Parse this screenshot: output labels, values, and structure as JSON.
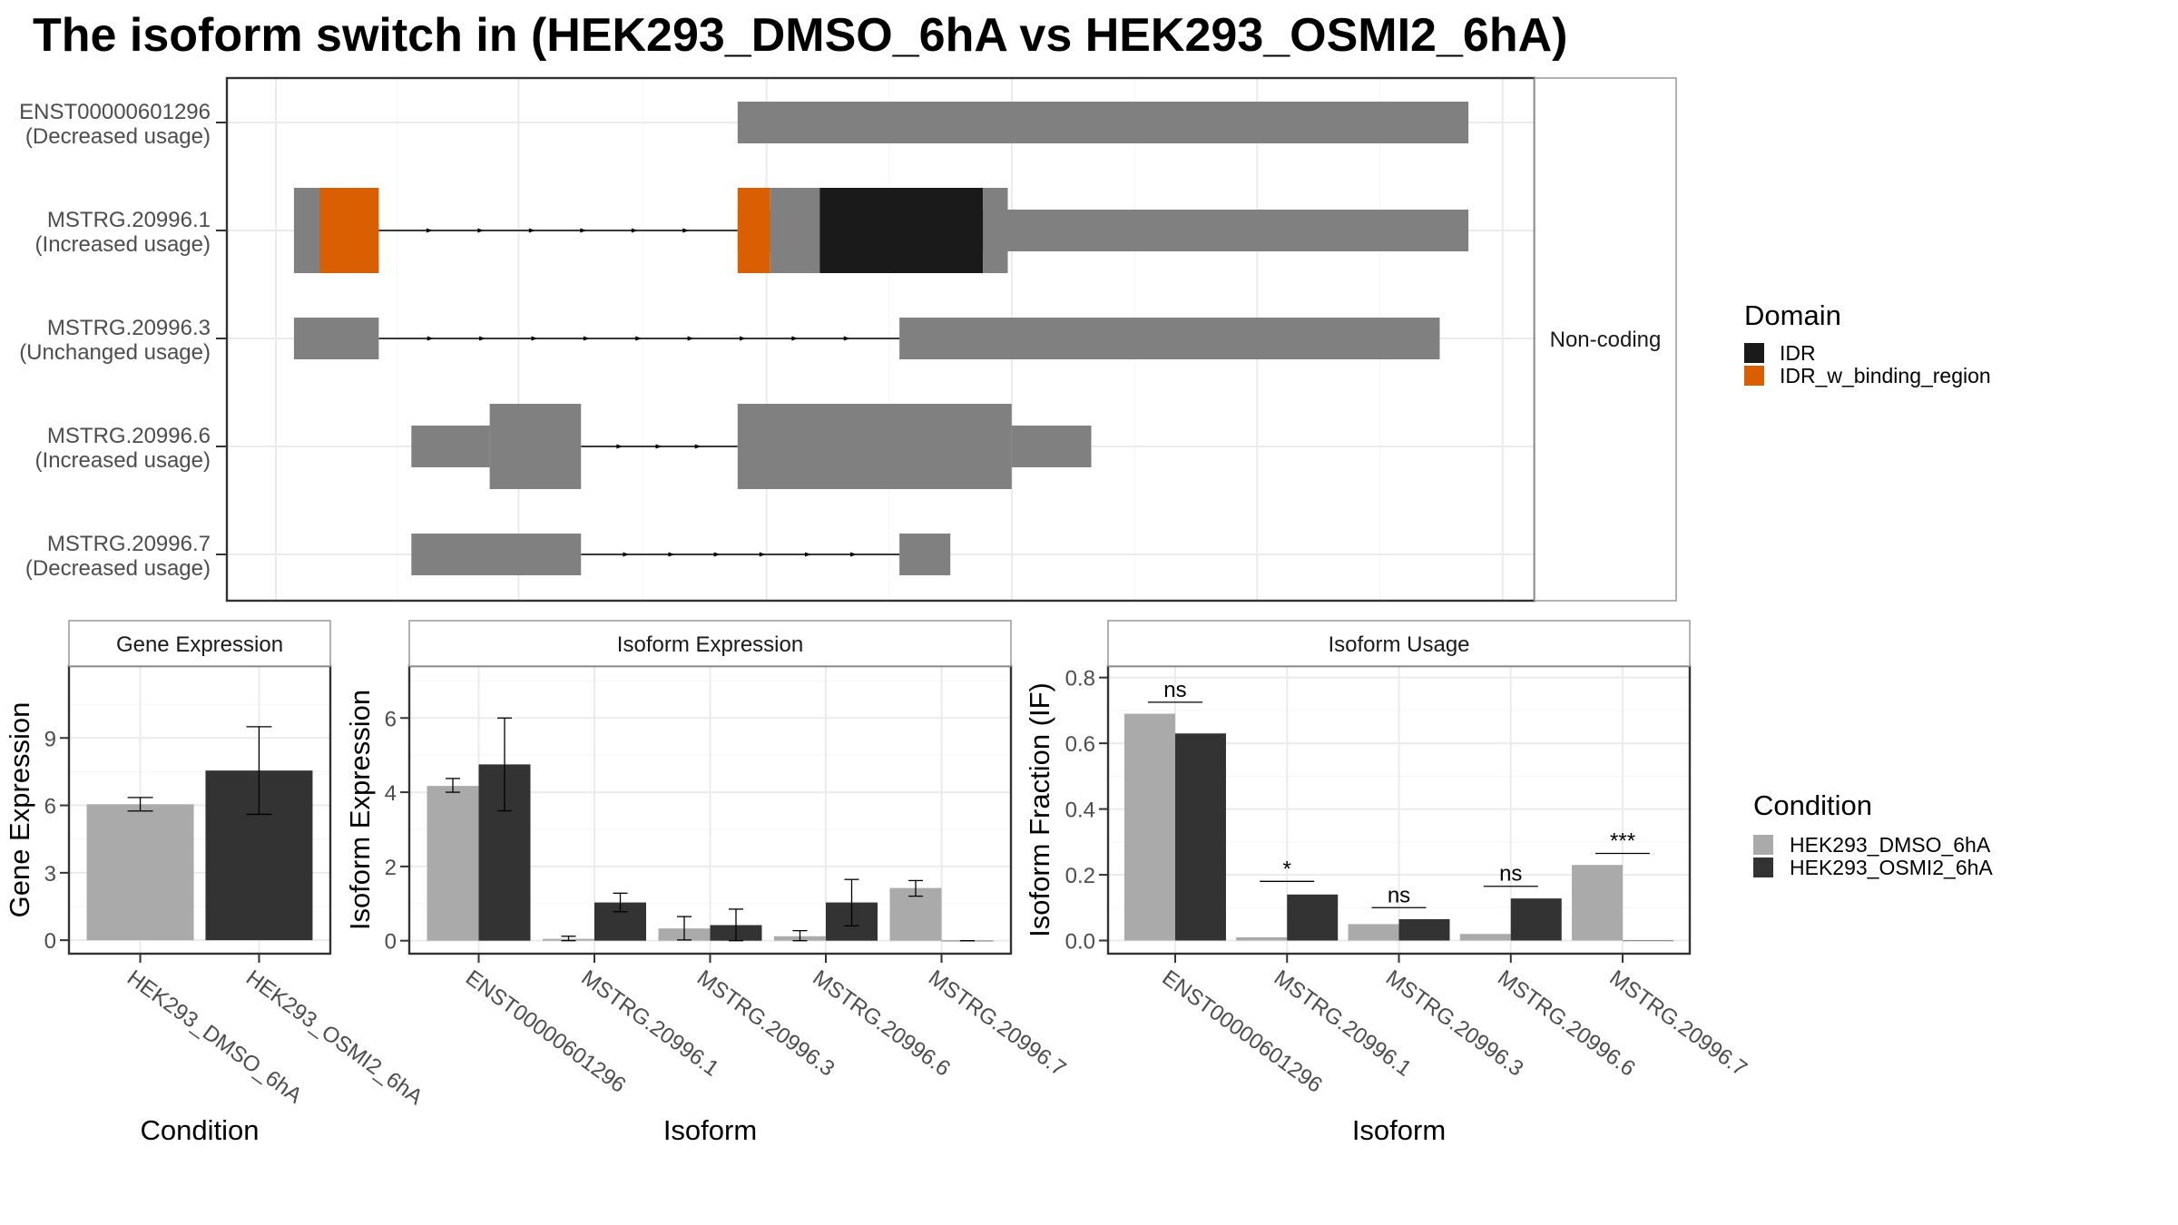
{
  "title": "The isoform switch in  (HEK293_DMSO_6hA vs HEK293_OSMI2_6hA)",
  "colors": {
    "exon": "#808080",
    "grid": "#ebebeb",
    "frame": "#333333",
    "strip_frame": "#9e9e9e",
    "strip_bg": "#ffffff",
    "IDR": "#1a1a1a",
    "IDR_w_binding_region": "#d95f02",
    "cond1": "#aaaaaa",
    "cond2": "#333333"
  },
  "chart_data": [
    {
      "type": "gene_structure",
      "facet_label": "Non-coding",
      "isoforms": [
        {
          "id": "ENST00000601296",
          "label": "(Decreased usage)",
          "exons": [
            {
              "start": 0.39,
              "end": 0.95,
              "h": "thin"
            }
          ],
          "domains": []
        },
        {
          "id": "MSTRG.20996.1",
          "label": "(Increased usage)",
          "exons": [
            {
              "start": 0.05,
              "end": 0.115,
              "h": "thick"
            },
            {
              "start": 0.39,
              "end": 0.95,
              "h": "thin"
            }
          ],
          "domains": [
            {
              "name": "IDR_w_binding_region",
              "start": 0.07,
              "end": 0.115
            },
            {
              "name": "IDR_w_binding_region",
              "start": 0.39,
              "end": 0.415
            },
            {
              "name": "filler",
              "start": 0.415,
              "end": 0.494
            },
            {
              "name": "IDR",
              "start": 0.453,
              "end": 0.578
            },
            {
              "name": "filler",
              "start": 0.578,
              "end": 0.597
            }
          ]
        },
        {
          "id": "MSTRG.20996.3",
          "label": "(Unchanged usage)",
          "exons": [
            {
              "start": 0.05,
              "end": 0.115,
              "h": "thin"
            },
            {
              "start": 0.514,
              "end": 0.928,
              "h": "thin"
            }
          ],
          "domains": []
        },
        {
          "id": "MSTRG.20996.6",
          "label": "(Increased usage)",
          "exons": [
            {
              "start": 0.14,
              "end": 0.2,
              "h": "thin"
            },
            {
              "start": 0.2,
              "end": 0.27,
              "h": "thick"
            },
            {
              "start": 0.39,
              "end": 0.6,
              "h": "thick"
            },
            {
              "start": 0.6,
              "end": 0.661,
              "h": "thin"
            }
          ],
          "domains": []
        },
        {
          "id": "MSTRG.20996.7",
          "label": "(Decreased usage)",
          "exons": [
            {
              "start": 0.14,
              "end": 0.27,
              "h": "thin"
            },
            {
              "start": 0.514,
              "end": 0.553,
              "h": "thin"
            }
          ],
          "domains": []
        }
      ],
      "legend": {
        "title": "Domain",
        "entries": [
          "IDR",
          "IDR_w_binding_region"
        ]
      }
    },
    {
      "type": "bar",
      "strip": "Gene Expression",
      "categories": [
        "HEK293_DMSO_6hA",
        "HEK293_OSMI2_6hA"
      ],
      "values": [
        6.05,
        7.55
      ],
      "err_low": [
        5.75,
        5.6
      ],
      "err_high": [
        6.35,
        9.5
      ],
      "xlabel": "Condition",
      "ylabel": "Gene Expression",
      "ylim": [
        -0.6,
        12.2
      ],
      "yticks": [
        0,
        3,
        6,
        9
      ]
    },
    {
      "type": "bar",
      "strip": "Isoform Expression",
      "categories": [
        "ENST00000601296",
        "MSTRG.20996.1",
        "MSTRG.20996.3",
        "MSTRG.20996.6",
        "MSTRG.20996.7"
      ],
      "series": [
        {
          "name": "HEK293_DMSO_6hA",
          "values": [
            4.17,
            0.05,
            0.33,
            0.12,
            1.42
          ],
          "err_low": [
            4.0,
            0.0,
            0.02,
            0.0,
            1.2
          ],
          "err_high": [
            4.37,
            0.12,
            0.65,
            0.27,
            1.62
          ]
        },
        {
          "name": "HEK293_OSMI2_6hA",
          "values": [
            4.75,
            1.03,
            0.42,
            1.03,
            0.0
          ],
          "err_low": [
            3.5,
            0.78,
            0.0,
            0.4,
            0.0
          ],
          "err_high": [
            6.0,
            1.28,
            0.85,
            1.65,
            0.0
          ]
        }
      ],
      "xlabel": "Isoform",
      "ylabel": "Isoform Expression",
      "ylim": [
        -0.35,
        7.4
      ],
      "yticks": [
        0,
        2,
        4,
        6
      ]
    },
    {
      "type": "bar",
      "strip": "Isoform Usage",
      "categories": [
        "ENST00000601296",
        "MSTRG.20996.1",
        "MSTRG.20996.3",
        "MSTRG.20996.6",
        "MSTRG.20996.7"
      ],
      "series": [
        {
          "name": "HEK293_DMSO_6hA",
          "values": [
            0.69,
            0.01,
            0.05,
            0.02,
            0.23
          ]
        },
        {
          "name": "HEK293_OSMI2_6hA",
          "values": [
            0.63,
            0.14,
            0.065,
            0.128,
            0.0
          ]
        }
      ],
      "significance": [
        "ns",
        "*",
        "ns",
        "ns",
        "***"
      ],
      "sig_y": [
        0.725,
        0.18,
        0.1,
        0.165,
        0.265
      ],
      "xlabel": "Isoform",
      "ylabel": "Isoform Fraction (IF)",
      "ylim": [
        -0.04,
        0.835
      ],
      "yticks": [
        0.0,
        0.2,
        0.4,
        0.6,
        0.8
      ],
      "ytick_labels": [
        "0.0",
        "0.2",
        "0.4",
        "0.6",
        "0.8"
      ]
    }
  ],
  "condition_legend": {
    "title": "Condition",
    "entries": [
      "HEK293_DMSO_6hA",
      "HEK293_OSMI2_6hA"
    ]
  }
}
